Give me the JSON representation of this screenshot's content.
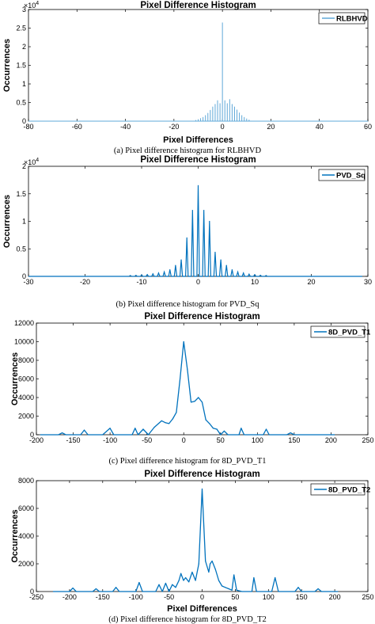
{
  "colors": {
    "line": "#0072BD",
    "line_light": "#5fa8d8",
    "axis": "#000000"
  },
  "chart_data": [
    {
      "type": "line",
      "title": "Pixel Difference Histogram",
      "xlabel": "Pixel Differences",
      "ylabel": "Occurrences",
      "caption": "(a) Pixel difference histogram for RLBHVD",
      "legend": "RLBHVD",
      "legend_position": "top-right",
      "y_multiplier": "×10",
      "y_multiplier_exp": "4",
      "xlim": [
        -80,
        60
      ],
      "ylim": [
        0,
        30000
      ],
      "xticks": [
        -80,
        -60,
        -40,
        -20,
        0,
        20,
        40,
        60
      ],
      "yticks": [
        0,
        5000,
        10000,
        15000,
        20000,
        25000,
        30000
      ],
      "ytick_labels": [
        "0",
        "0.5",
        "1",
        "1.5",
        "2",
        "2.5",
        "3"
      ],
      "style": "stem",
      "series": [
        {
          "x": [
            -11,
            -10,
            -9,
            -8,
            -7,
            -6,
            -5,
            -4,
            -3,
            -2,
            -1,
            0,
            1,
            2,
            3,
            4,
            5,
            6,
            7,
            8,
            9,
            10,
            11
          ],
          "y": [
            300,
            500,
            800,
            1100,
            1600,
            2200,
            3000,
            3900,
            4600,
            5600,
            4800,
            26500,
            5600,
            4800,
            5900,
            4600,
            3900,
            3100,
            2300,
            1600,
            1100,
            700,
            400
          ]
        }
      ]
    },
    {
      "type": "line",
      "title": "Pixel Difference Histogram",
      "xlabel": "",
      "ylabel": "Occurrences",
      "caption": "(b) Pixel difference histogram for PVD_Sq",
      "legend": "PVD_Sq",
      "legend_position": "top-right",
      "y_multiplier": "×10",
      "y_multiplier_exp": "4",
      "xlim": [
        -30,
        30
      ],
      "ylim": [
        0,
        20000
      ],
      "xticks": [
        -30,
        -20,
        -10,
        0,
        10,
        20,
        30
      ],
      "yticks": [
        0,
        5000,
        10000,
        15000,
        20000
      ],
      "ytick_labels": [
        "0",
        "0.5",
        "1",
        "1.5",
        "2"
      ],
      "style": "spikes",
      "series": [
        {
          "x": [
            -30,
            -12,
            -11,
            -10,
            -9,
            -8,
            -7,
            -6,
            -5,
            -4,
            -3,
            -2,
            -1,
            0,
            1,
            2,
            3,
            4,
            5,
            6,
            7,
            8,
            9,
            10,
            11,
            12,
            29
          ],
          "y": [
            0,
            150,
            180,
            250,
            320,
            450,
            600,
            800,
            1200,
            2000,
            3000,
            7000,
            12000,
            16500,
            12000,
            10000,
            4400,
            3000,
            2000,
            1200,
            800,
            600,
            400,
            300,
            200,
            150,
            0
          ]
        }
      ]
    },
    {
      "type": "line",
      "title": "Pixel Difference Histogram",
      "xlabel": "",
      "ylabel": "Occurrences",
      "caption": "(c) Pixel difference histogram for 8D_PVD_T1",
      "legend": "8D_PVD_T1",
      "legend_position": "top-right",
      "xlim": [
        -200,
        250
      ],
      "ylim": [
        0,
        12000
      ],
      "xticks": [
        -200,
        -150,
        -100,
        -50,
        0,
        50,
        100,
        150,
        200,
        250
      ],
      "yticks": [
        0,
        2000,
        4000,
        6000,
        8000,
        10000,
        12000
      ],
      "ytick_labels": [
        "0",
        "2000",
        "4000",
        "6000",
        "8000",
        "10000",
        "12000"
      ],
      "style": "line",
      "series": [
        {
          "x": [
            -195,
            -170,
            -165,
            -160,
            -140,
            -135,
            -130,
            -110,
            -100,
            -95,
            -80,
            -70,
            -66,
            -62,
            -55,
            -48,
            -40,
            -30,
            -25,
            -20,
            -15,
            -10,
            -5,
            0,
            5,
            10,
            15,
            20,
            25,
            30,
            35,
            40,
            45,
            50,
            55,
            60,
            70,
            75,
            78,
            82,
            90,
            100,
            108,
            112,
            116,
            130,
            140,
            145,
            150,
            160,
            170,
            175,
            180,
            195,
            205
          ],
          "y": [
            0,
            0,
            200,
            0,
            0,
            500,
            0,
            0,
            700,
            0,
            0,
            0,
            700,
            0,
            600,
            0,
            800,
            1500,
            1300,
            1200,
            1700,
            2400,
            6000,
            10000,
            7000,
            3500,
            3600,
            4000,
            3500,
            1600,
            1200,
            700,
            600,
            0,
            400,
            0,
            0,
            0,
            700,
            0,
            0,
            0,
            0,
            600,
            0,
            0,
            0,
            200,
            0,
            0,
            0,
            0,
            0,
            0,
            0
          ]
        }
      ]
    },
    {
      "type": "line",
      "title": "Pixel Difference Histogram",
      "xlabel": "Pixel Differences",
      "ylabel": "Occurrences",
      "caption": "(d) Pixel difference histogram for 8D_PVD_T2",
      "legend": "8D_PVD_T2",
      "legend_position": "top-right",
      "xlim": [
        -250,
        250
      ],
      "ylim": [
        0,
        8000
      ],
      "xticks": [
        -250,
        -200,
        -150,
        -100,
        -50,
        0,
        50,
        100,
        150,
        200,
        250
      ],
      "yticks": [
        0,
        2000,
        4000,
        6000,
        8000
      ],
      "ytick_labels": [
        "0",
        "2000",
        "4000",
        "6000",
        "8000"
      ],
      "style": "line",
      "series": [
        {
          "x": [
            -225,
            -200,
            -195,
            -190,
            -165,
            -160,
            -155,
            -135,
            -130,
            -125,
            -100,
            -95,
            -90,
            -70,
            -65,
            -60,
            -55,
            -50,
            -45,
            -40,
            -35,
            -32,
            -28,
            -25,
            -20,
            -15,
            -10,
            -5,
            0,
            5,
            10,
            12,
            15,
            20,
            25,
            30,
            35,
            40,
            45,
            48,
            52,
            60,
            75,
            78,
            82,
            105,
            110,
            115,
            140,
            145,
            150,
            170,
            175,
            180,
            205
          ],
          "y": [
            0,
            0,
            250,
            0,
            0,
            200,
            0,
            0,
            300,
            0,
            0,
            650,
            0,
            0,
            500,
            0,
            600,
            0,
            500,
            300,
            800,
            1300,
            800,
            1000,
            700,
            1400,
            800,
            2000,
            7400,
            2200,
            1400,
            2000,
            2200,
            1600,
            800,
            400,
            300,
            200,
            100,
            1200,
            100,
            0,
            0,
            1000,
            0,
            0,
            1000,
            0,
            0,
            300,
            0,
            0,
            200,
            0,
            0
          ]
        }
      ]
    }
  ]
}
